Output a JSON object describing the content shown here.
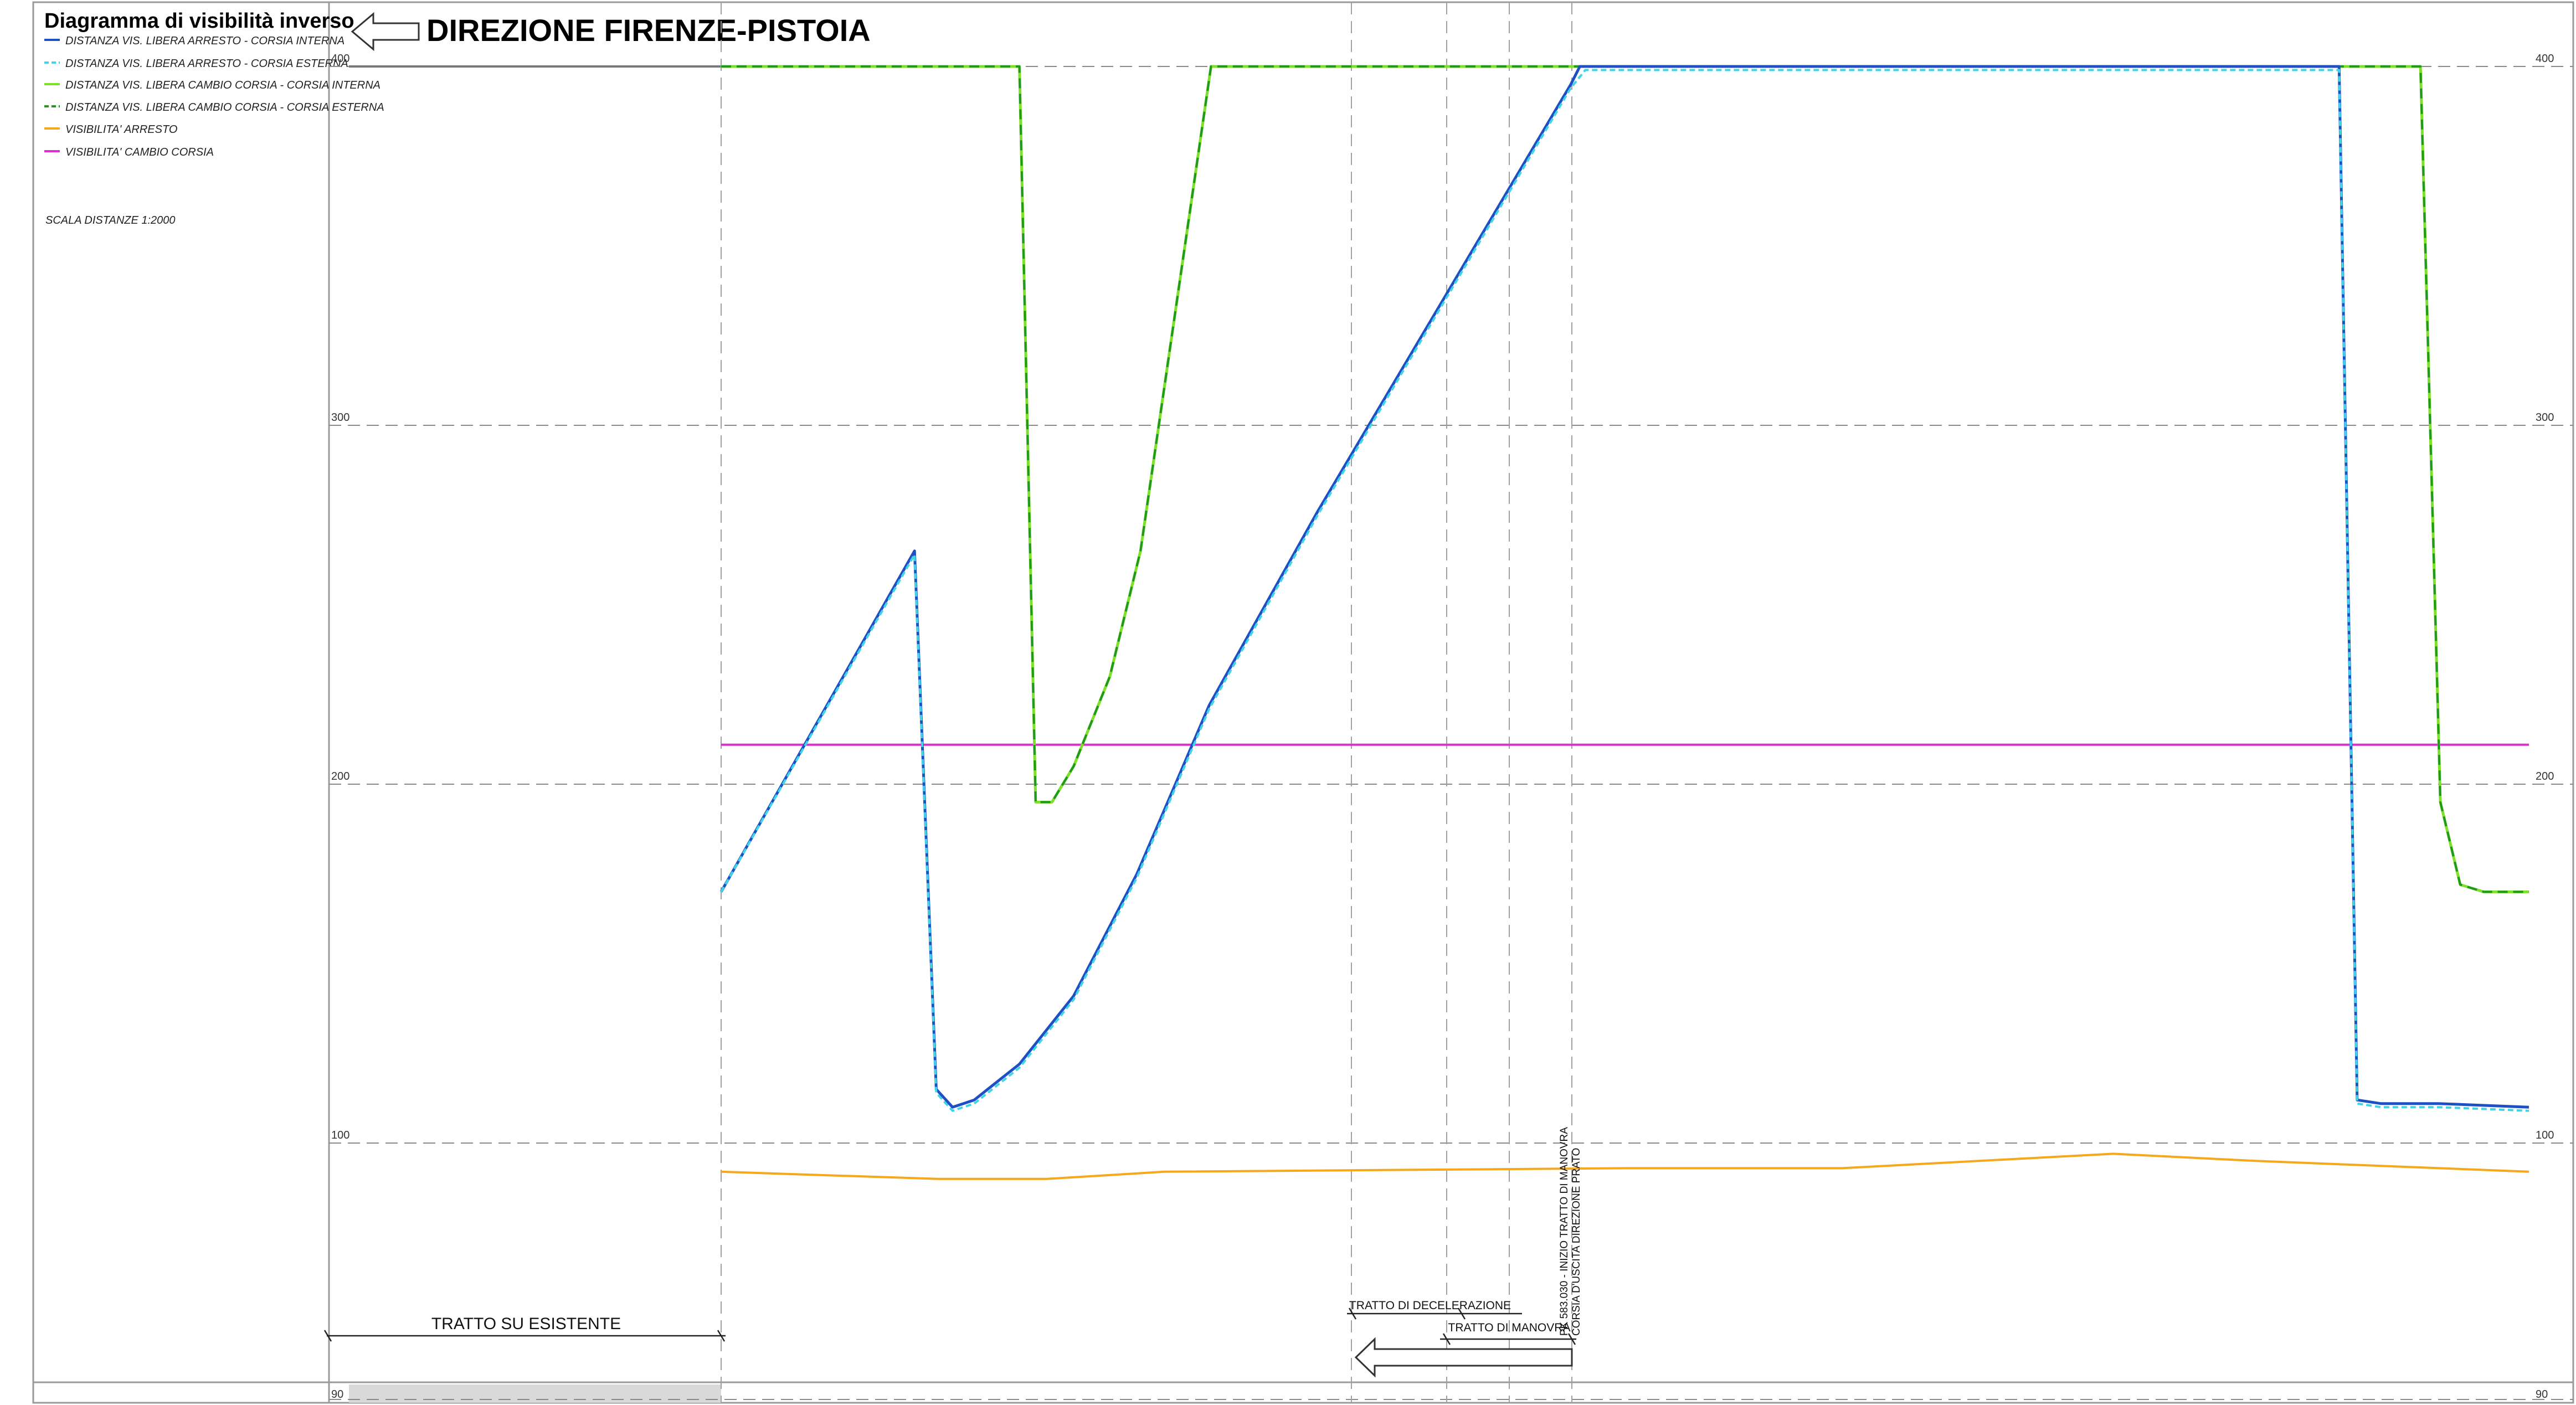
{
  "legend": {
    "title": "Diagramma di visibilità inverso",
    "items": [
      {
        "label": "DISTANZA VIS. LIBERA ARRESTO - CORSIA INTERNA",
        "color": "#1f4fc4",
        "dash": "solid"
      },
      {
        "label": "DISTANZA VIS. LIBERA ARRESTO - CORSIA ESTERNA",
        "color": "#3fd4e6",
        "dash": "dashed"
      },
      {
        "label": "DISTANZA VIS. LIBERA CAMBIO CORSIA - CORSIA INTERNA",
        "color": "#7fe02a",
        "dash": "solid"
      },
      {
        "label": "DISTANZA VIS. LIBERA CAMBIO CORSIA - CORSIA ESTERNA",
        "color": "#1f9a1f",
        "dash": "dashed"
      },
      {
        "label": "VISIBILITA' ARRESTO",
        "color": "#f5a81c",
        "dash": "solid"
      },
      {
        "label": "VISIBILITA' CAMBIO CORSIA",
        "color": "#e02fd0",
        "dash": "solid"
      }
    ],
    "scale_note": "SCALA DISTANZE 1:2000"
  },
  "header": {
    "direction_title": "DIREZIONE FIRENZE-PISTOIA",
    "arrow": "left-arrow-icon"
  },
  "annotations": {
    "existing_section": "TRATTO SU ESISTENTE",
    "deceleration_section": "TRATTO DI DECELERAZIONE",
    "maneuver_section": "TRATTO DI MANOVRA",
    "pk_note_line1": "PK 583.030 - INIZIO TRATTO DI MANOVRA",
    "pk_note_line2": "CORSIA D'USCITA DIREZIONE PRATO"
  },
  "chart_data": {
    "type": "line",
    "title": "Diagramma di visibilità inverso",
    "xlabel": "",
    "ylabel": "",
    "x_unit": "relative progression (0-1000)",
    "ylim": [
      90,
      400
    ],
    "y_ticks": [
      "400",
      "300",
      "200",
      "100",
      "90"
    ],
    "grid": true,
    "legend_position": "top-left",
    "series": [
      {
        "name": "DISTANZA VIS. LIBERA ARRESTO - CORSIA INTERNA",
        "color": "#1f4fc4",
        "points": [
          [
            0,
            170
          ],
          [
            107,
            265
          ],
          [
            119,
            115
          ],
          [
            128,
            110
          ],
          [
            140,
            112
          ],
          [
            165,
            122
          ],
          [
            195,
            141
          ],
          [
            230,
            175
          ],
          [
            270,
            222
          ],
          [
            330,
            276
          ],
          [
            470,
            395
          ],
          [
            475,
            400
          ],
          [
            895,
            400
          ],
          [
            905,
            112
          ],
          [
            918,
            111
          ],
          [
            950,
            111
          ],
          [
            1000,
            110
          ]
        ]
      },
      {
        "name": "DISTANZA VIS. LIBERA ARRESTO - CORSIA ESTERNA",
        "color": "#3fd4e6",
        "points": [
          [
            0,
            170
          ],
          [
            107,
            264
          ],
          [
            119,
            114
          ],
          [
            128,
            109
          ],
          [
            140,
            111
          ],
          [
            165,
            121
          ],
          [
            195,
            140
          ],
          [
            230,
            174
          ],
          [
            270,
            221
          ],
          [
            330,
            275
          ],
          [
            470,
            394
          ],
          [
            478,
            399
          ],
          [
            895,
            399
          ],
          [
            905,
            111
          ],
          [
            918,
            110
          ],
          [
            950,
            110
          ],
          [
            1000,
            109
          ]
        ]
      },
      {
        "name": "DISTANZA VIS. LIBERA CAMBIO CORSIA - CORSIA INTERNA",
        "color": "#7fe02a",
        "points": [
          [
            0,
            400
          ],
          [
            165,
            400
          ],
          [
            174,
            195
          ],
          [
            183,
            195
          ],
          [
            195,
            205
          ],
          [
            215,
            230
          ],
          [
            232,
            265
          ],
          [
            271,
            400
          ],
          [
            940,
            400
          ],
          [
            951,
            195
          ],
          [
            962,
            172
          ],
          [
            975,
            170
          ],
          [
            1000,
            170
          ]
        ]
      },
      {
        "name": "DISTANZA VIS. LIBERA CAMBIO CORSIA - CORSIA ESTERNA",
        "color": "#1f9a1f",
        "points": [
          [
            0,
            400
          ],
          [
            165,
            400
          ],
          [
            174,
            195
          ],
          [
            183,
            195
          ],
          [
            195,
            205
          ],
          [
            215,
            230
          ],
          [
            232,
            265
          ],
          [
            271,
            400
          ],
          [
            940,
            400
          ],
          [
            951,
            195
          ],
          [
            962,
            172
          ],
          [
            975,
            170
          ],
          [
            1000,
            170
          ]
        ]
      },
      {
        "name": "VISIBILITA' ARRESTO",
        "color": "#f5a81c",
        "points": [
          [
            0,
            92
          ],
          [
            120,
            90
          ],
          [
            180,
            90
          ],
          [
            245,
            92
          ],
          [
            500,
            93
          ],
          [
            620,
            93
          ],
          [
            770,
            97
          ],
          [
            850,
            95
          ],
          [
            1000,
            92
          ]
        ]
      },
      {
        "name": "VISIBILITA' CAMBIO CORSIA",
        "color": "#e02fd0",
        "points": [
          [
            0,
            211
          ],
          [
            1000,
            211
          ]
        ]
      }
    ]
  }
}
